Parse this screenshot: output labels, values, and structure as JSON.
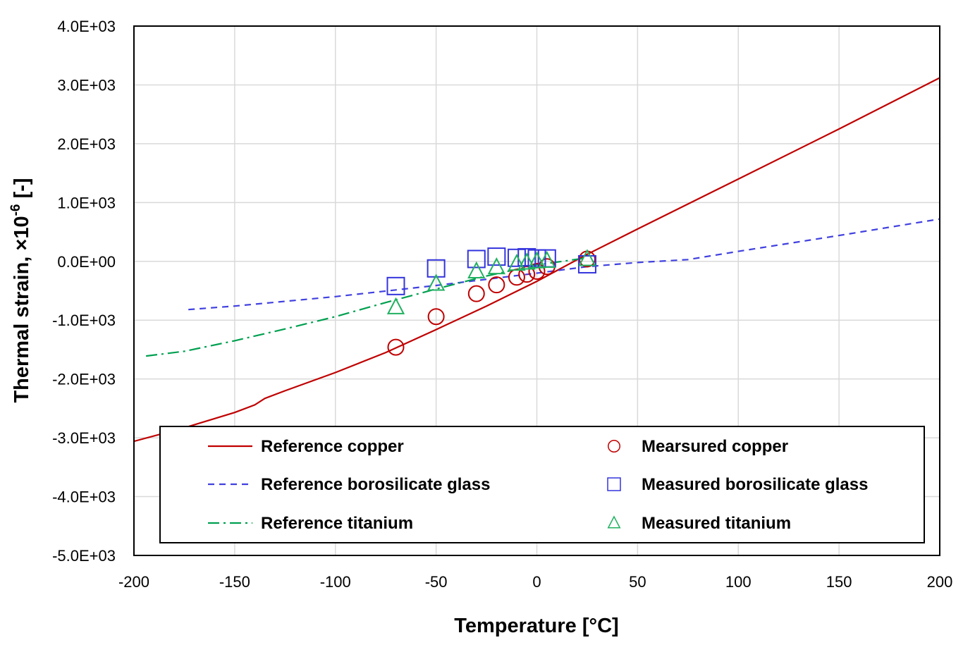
{
  "chart_data": {
    "type": "line",
    "xlabel": "Temperature [°C]",
    "ylabel_main": "Thermal strain, ×10",
    "ylabel_exp": "-6",
    "ylabel_unit": " [-]",
    "xlim": [
      -200,
      200
    ],
    "ylim": [
      -5000,
      4000
    ],
    "x_ticks": [
      -200,
      -150,
      -100,
      -50,
      0,
      50,
      100,
      150,
      200
    ],
    "x_tick_labels": [
      "-200",
      "-150",
      "-100",
      "-50",
      "0",
      "50",
      "100",
      "150",
      "200"
    ],
    "y_ticks": [
      4000,
      3000,
      2000,
      1000,
      0,
      -1000,
      -2000,
      -3000,
      -4000,
      -5000
    ],
    "y_tick_labels": [
      "4.0E+03",
      "3.0E+03",
      "2.0E+03",
      "1.0E+03",
      "0.0E+00",
      "-1.0E+03",
      "-2.0E+03",
      "-3.0E+03",
      "-4.0E+03",
      "-5.0E+03"
    ],
    "grid": true,
    "legend_position": "lower-center",
    "series": [
      {
        "name": "Reference copper",
        "kind": "line",
        "dash": "solid",
        "color": "#c00000",
        "x": [
          -200,
          -175,
          -150,
          -140,
          -135,
          -125,
          -100,
          -75,
          -50,
          -25,
          0,
          25,
          50,
          100,
          150,
          200
        ],
        "y": [
          -3060,
          -2830,
          -2570,
          -2440,
          -2330,
          -2200,
          -1890,
          -1550,
          -1160,
          -760,
          -340,
          120,
          550,
          1400,
          2250,
          3120
        ]
      },
      {
        "name": "Reference borosilicate glass",
        "kind": "line",
        "dash": "dashed",
        "color": "#4040e0",
        "x": [
          -173,
          -150,
          -100,
          -50,
          0,
          25,
          50,
          75,
          100,
          150,
          200
        ],
        "y": [
          -820,
          -760,
          -600,
          -410,
          -200,
          -90,
          -20,
          30,
          170,
          440,
          720
        ]
      },
      {
        "name": "Reference titanium",
        "kind": "line",
        "dash": "dashdot",
        "color": "#00a050",
        "x": [
          -194,
          -175,
          -150,
          -125,
          -100,
          -75,
          -50,
          -25,
          0,
          25
        ],
        "y": [
          -1610,
          -1530,
          -1350,
          -1150,
          -940,
          -700,
          -470,
          -250,
          -60,
          60
        ]
      },
      {
        "name": "Mearsured copper",
        "kind": "marker",
        "marker": "circle",
        "color": "#c00000",
        "x": [
          -70,
          -50,
          -30,
          -20,
          -10,
          -5,
          0,
          5,
          25
        ],
        "y": [
          -1460,
          -940,
          -550,
          -400,
          -270,
          -220,
          -170,
          -90,
          40
        ]
      },
      {
        "name": "Measured borosilicate glass",
        "kind": "marker",
        "marker": "square",
        "color": "#3333dd",
        "x": [
          -70,
          -50,
          -30,
          -20,
          -10,
          -5,
          0,
          5,
          25
        ],
        "y": [
          -420,
          -120,
          40,
          80,
          60,
          70,
          50,
          50,
          -50
        ]
      },
      {
        "name": "Measured titanium",
        "kind": "marker",
        "marker": "triangle",
        "color": "#20b060",
        "x": [
          -70,
          -50,
          -30,
          -20,
          -10,
          -5,
          0,
          5,
          25
        ],
        "y": [
          -780,
          -380,
          -170,
          -100,
          -40,
          -20,
          0,
          10,
          40
        ]
      }
    ]
  }
}
